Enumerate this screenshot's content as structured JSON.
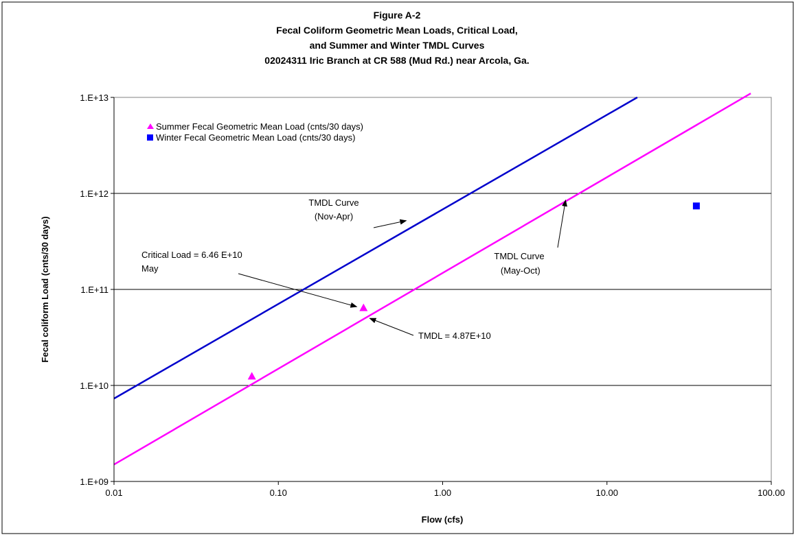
{
  "chart_data": {
    "type": "scatter",
    "title_lines": [
      "Figure A-2",
      "Fecal Coliform Geometric Mean Loads,  Critical Load,",
      "and Summer and Winter TMDL Curves",
      "02024311 Iric Branch at CR 588 (Mud Rd.) near Arcola, Ga."
    ],
    "xlabel": "Flow   (cfs)",
    "ylabel": "Fecal coliform Load  (cnts/30 days)",
    "x_scale": "log",
    "y_scale": "log",
    "xlim": [
      0.01,
      100
    ],
    "ylim": [
      1000000000.0,
      10000000000000.0
    ],
    "x_ticks": [
      0.01,
      0.1,
      1,
      10,
      100
    ],
    "x_tick_labels": [
      "0.01",
      "0.10",
      "1.00",
      "10.00",
      "100.00"
    ],
    "y_ticks": [
      1000000000.0,
      10000000000.0,
      100000000000.0,
      1000000000000.0,
      10000000000000.0
    ],
    "y_tick_labels": [
      "1.E+09",
      "1.E+10",
      "1.E+11",
      "1.E+12",
      "1.E+13"
    ],
    "grid": "horizontal major gridlines",
    "legend_position": "top-left",
    "series": [
      {
        "name": "Summer Fecal Geometric Mean Load (cnts/30 days)",
        "marker": "triangle",
        "color": "#ff00ff",
        "points": [
          [
            0.069,
            12500000000.0
          ],
          [
            0.33,
            64600000000.0
          ]
        ]
      },
      {
        "name": "Winter Fecal Geometric Mean Load (cnts/30 days)",
        "marker": "square",
        "color": "#0000ff",
        "points": [
          [
            35,
            740000000000.0
          ]
        ]
      }
    ],
    "lines": [
      {
        "id": "tmdl-nov-apr",
        "color": "#0000cc",
        "points": [
          [
            0.01,
            7300000000.0
          ],
          [
            15.3,
            10000000000000.0
          ]
        ]
      },
      {
        "id": "tmdl-may-oct",
        "color": "#ff00ff",
        "points": [
          [
            0.01,
            1500000000.0
          ],
          [
            75,
            11000000000000.0
          ]
        ]
      }
    ],
    "annotations": [
      {
        "id": "tmdl-nov-apr-label",
        "lines": [
          "TMDL Curve",
          "(Nov-Apr)"
        ],
        "arrow_to": [
          0.6,
          520000000000.0
        ]
      },
      {
        "id": "critical-load-label",
        "lines": [
          "Critical Load = 6.46 E+10",
          "May"
        ],
        "arrow_to": [
          0.3,
          66000000000.0
        ]
      },
      {
        "id": "tmdl-may-oct-label",
        "lines": [
          "TMDL Curve",
          " (May-Oct)"
        ],
        "arrow_to": [
          5.6,
          850000000000.0
        ]
      },
      {
        "id": "tmdl-value-label",
        "lines": [
          "TMDL = 4.87E+10"
        ],
        "arrow_to": [
          0.36,
          50000000000.0
        ]
      }
    ]
  }
}
